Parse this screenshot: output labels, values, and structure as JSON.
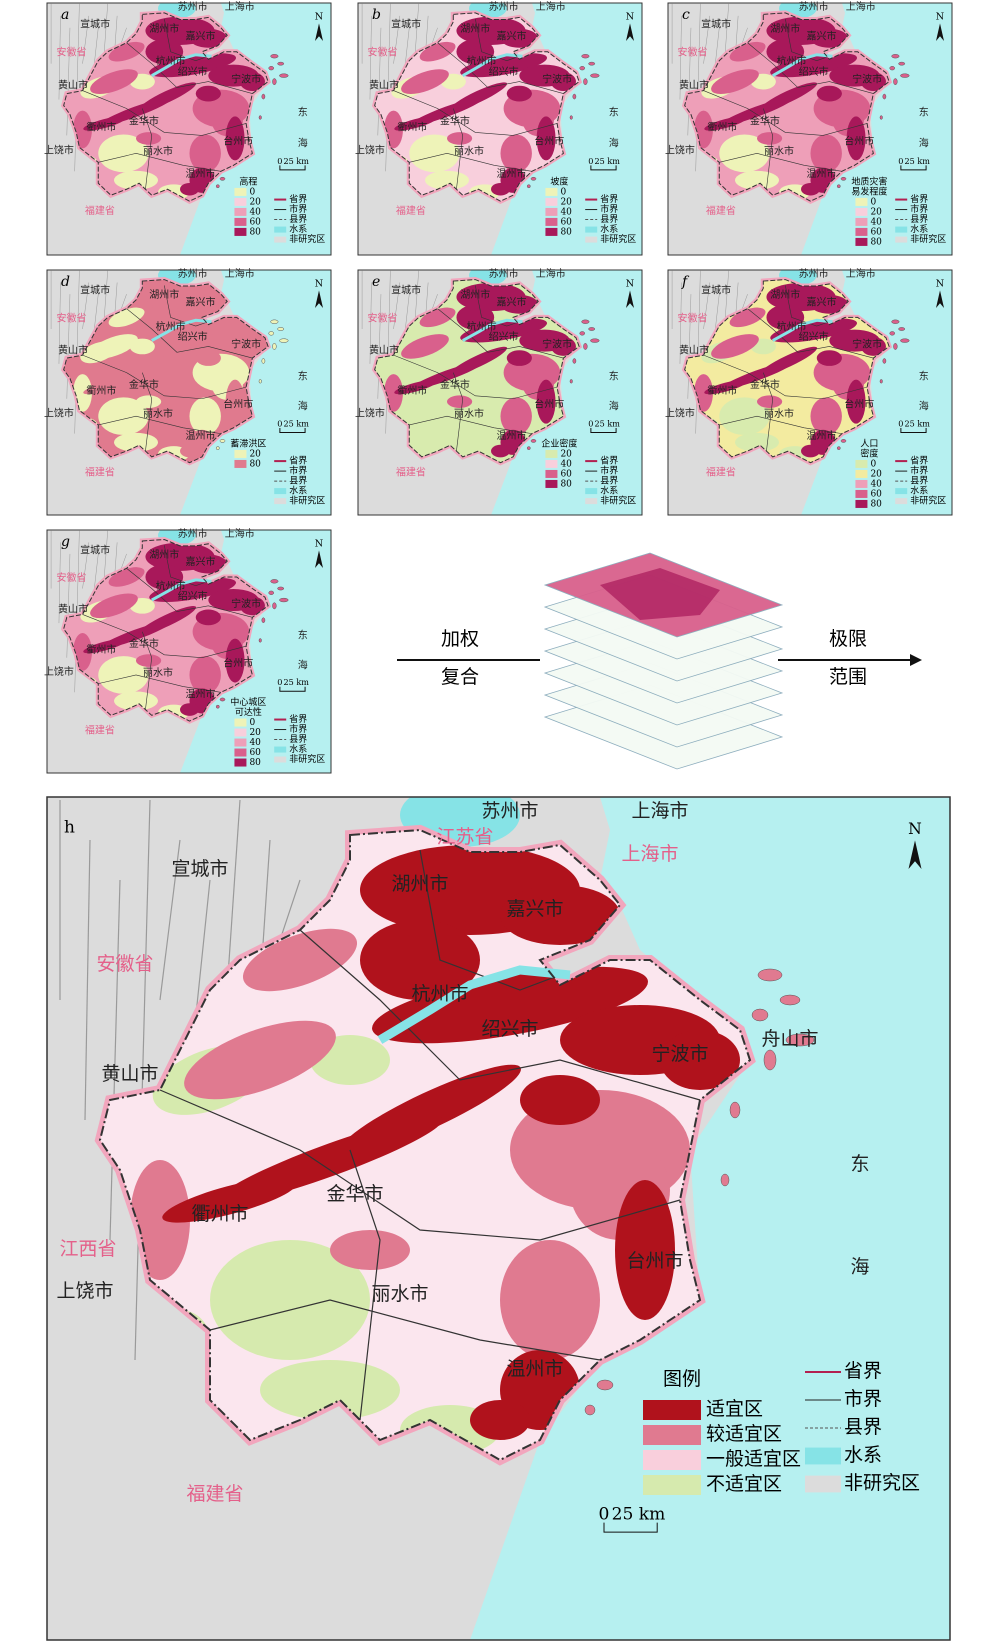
{
  "places": [
    {
      "name": "苏州市",
      "color": "#222222"
    },
    {
      "name": "上海市",
      "color": "#222222"
    },
    {
      "name": "宣城市",
      "color": "#222222"
    },
    {
      "name": "安徽省",
      "color": "#e4608a"
    },
    {
      "name": "湖州市",
      "color": "#222222"
    },
    {
      "name": "嘉兴市",
      "color": "#222222"
    },
    {
      "name": "杭州市",
      "color": "#222222"
    },
    {
      "name": "绍兴市",
      "color": "#222222"
    },
    {
      "name": "宁波市",
      "color": "#222222"
    },
    {
      "name": "黄山市",
      "color": "#222222"
    },
    {
      "name": "衢州市",
      "color": "#222222"
    },
    {
      "name": "金华市",
      "color": "#222222"
    },
    {
      "name": "台州市",
      "color": "#222222"
    },
    {
      "name": "丽水市",
      "color": "#222222"
    },
    {
      "name": "温州市",
      "color": "#222222"
    },
    {
      "name": "上饶市",
      "color": "#222222"
    },
    {
      "name": "福建省",
      "color": "#e4608a"
    },
    {
      "name": "东",
      "color": "#222222"
    },
    {
      "name": "海",
      "color": "#222222"
    }
  ],
  "north": "N",
  "scale": {
    "zero": "0",
    "length": "25 km"
  },
  "boundary_legend": [
    "省界",
    "市界",
    "县界",
    "水系",
    "非研究区"
  ],
  "panels": [
    {
      "letter": "a",
      "legend_title": [
        "高程"
      ],
      "classes": [
        {
          "label": "0",
          "color": "#eef3b8"
        },
        {
          "label": "20",
          "color": "#f8cfdc"
        },
        {
          "label": "40",
          "color": "#ee9fb8"
        },
        {
          "label": "60",
          "color": "#d9608c"
        },
        {
          "label": "80",
          "color": "#a8185a"
        }
      ]
    },
    {
      "letter": "b",
      "legend_title": [
        "坡度"
      ],
      "classes": [
        {
          "label": "0",
          "color": "#eef3b8"
        },
        {
          "label": "20",
          "color": "#f8cfdc"
        },
        {
          "label": "40",
          "color": "#ee9fb8"
        },
        {
          "label": "60",
          "color": "#d9608c"
        },
        {
          "label": "80",
          "color": "#a8185a"
        }
      ]
    },
    {
      "letter": "c",
      "legend_title": [
        "地质灾害",
        "易发程度"
      ],
      "classes": [
        {
          "label": "0",
          "color": "#eef3b8"
        },
        {
          "label": "20",
          "color": "#f8cfdc"
        },
        {
          "label": "40",
          "color": "#ee9fb8"
        },
        {
          "label": "60",
          "color": "#d9608c"
        },
        {
          "label": "80",
          "color": "#a8185a"
        }
      ]
    },
    {
      "letter": "d",
      "legend_title": [
        "蓄滞洪区"
      ],
      "classes": [
        {
          "label": "20",
          "color": "#eef3b8"
        },
        {
          "label": "80",
          "color": "#e07a8e"
        }
      ]
    },
    {
      "letter": "e",
      "legend_title": [
        "企业密度"
      ],
      "classes": [
        {
          "label": "20",
          "color": "#d8ebae"
        },
        {
          "label": "40",
          "color": "#f8cfdc"
        },
        {
          "label": "60",
          "color": "#d9608c"
        },
        {
          "label": "80",
          "color": "#a8185a"
        }
      ]
    },
    {
      "letter": "f",
      "legend_title": [
        "人口",
        "密度"
      ],
      "classes": [
        {
          "label": "0",
          "color": "#d8ebae"
        },
        {
          "label": "20",
          "color": "#f3eba0"
        },
        {
          "label": "40",
          "color": "#ee9fb8"
        },
        {
          "label": "60",
          "color": "#d9608c"
        },
        {
          "label": "80",
          "color": "#a8185a"
        }
      ]
    },
    {
      "letter": "g",
      "legend_title": [
        "中心城区",
        "可达性"
      ],
      "classes": [
        {
          "label": "0",
          "color": "#eef3b8"
        },
        {
          "label": "20",
          "color": "#f8cfdc"
        },
        {
          "label": "40",
          "color": "#ee9fb8"
        },
        {
          "label": "60",
          "color": "#d9608c"
        },
        {
          "label": "80",
          "color": "#a8185a"
        }
      ]
    }
  ],
  "arrows": {
    "left": [
      "加权",
      "复合"
    ],
    "right": [
      "极限",
      "范围"
    ]
  },
  "main": {
    "letter": "h",
    "extra_places": [
      {
        "name": "江苏省",
        "color": "#e4608a"
      },
      {
        "name": "上海市",
        "color": "#e4608a"
      },
      {
        "name": "舟山市",
        "color": "#222222"
      },
      {
        "name": "江西省",
        "color": "#e4608a"
      }
    ],
    "legend_title": "图例",
    "classes": [
      {
        "label": "适宜区",
        "color": "#b0121c"
      },
      {
        "label": "较适宜区",
        "color": "#e07a90"
      },
      {
        "label": "一般适宜区",
        "color": "#f9cfdc"
      },
      {
        "label": "不适宜区",
        "color": "#d6eaae"
      }
    ]
  }
}
